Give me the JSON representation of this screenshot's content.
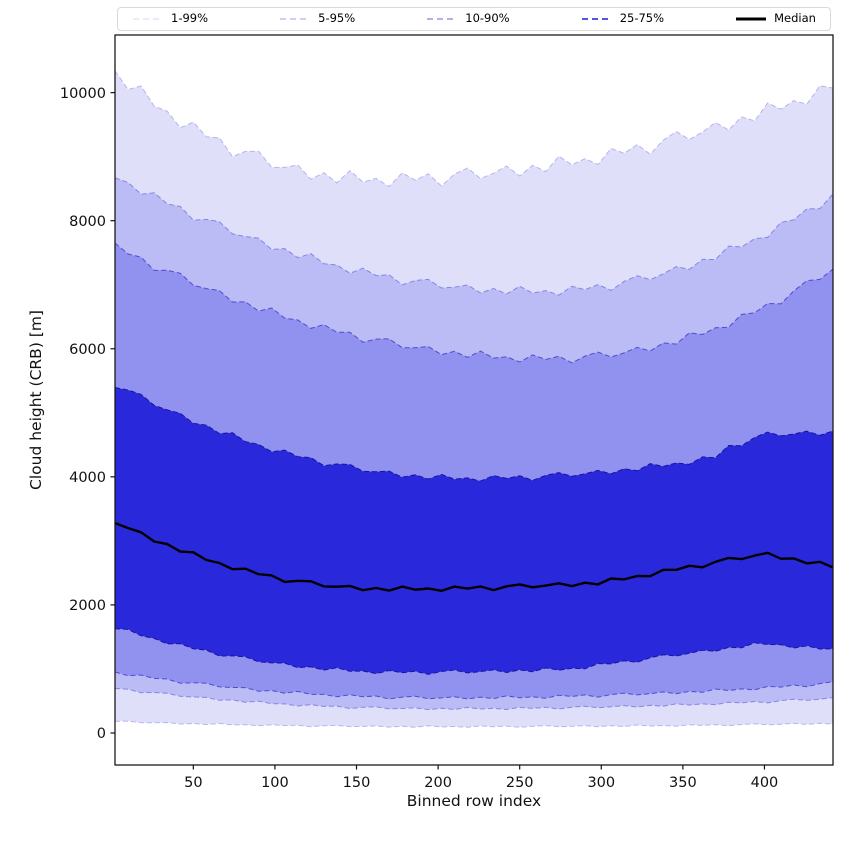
{
  "legend": {
    "items": [
      {
        "label": "1-99%",
        "color": "#e3e3f8",
        "dash": "6,4",
        "width": 1.5
      },
      {
        "label": "5-95%",
        "color": "#bdbdf3",
        "dash": "6,4",
        "width": 1.5
      },
      {
        "label": "10-90%",
        "color": "#9595ee",
        "dash": "6,4",
        "width": 1.5
      },
      {
        "label": "25-75%",
        "color": "#3b3be0",
        "dash": "6,4",
        "width": 1.8
      },
      {
        "label": "Median",
        "color": "#000000",
        "dash": "none",
        "width": 3
      }
    ]
  },
  "chart_data": {
    "type": "area",
    "xlabel": "Binned row index",
    "ylabel": "Cloud height (CRB) [m]",
    "xlim": [
      2,
      442
    ],
    "ylim": [
      -500,
      10900
    ],
    "x_ticks": [
      50,
      100,
      150,
      200,
      250,
      300,
      350,
      400
    ],
    "y_ticks": [
      0,
      2000,
      4000,
      6000,
      8000,
      10000
    ],
    "grid": false,
    "legend_position": "top",
    "x": [
      2,
      10,
      18,
      26,
      34,
      42,
      50,
      58,
      66,
      74,
      82,
      90,
      98,
      106,
      114,
      122,
      130,
      138,
      146,
      154,
      162,
      170,
      178,
      186,
      194,
      202,
      210,
      218,
      226,
      234,
      242,
      250,
      258,
      266,
      274,
      282,
      290,
      298,
      306,
      314,
      322,
      330,
      338,
      346,
      354,
      362,
      370,
      378,
      386,
      394,
      402,
      410,
      418,
      426,
      434,
      442
    ],
    "percentiles": {
      "p1": [
        183,
        185,
        161,
        161,
        164,
        141,
        150,
        132,
        149,
        127,
        129,
        113,
        130,
        115,
        121,
        98,
        113,
        119,
        99,
        103,
        111,
        92,
        105,
        91,
        112,
        95,
        101,
        88,
        110,
        98,
        108,
        88,
        106,
        115,
        98,
        105,
        115,
        98,
        114,
        102,
        125,
        109,
        117,
        106,
        129,
        119,
        131,
        113,
        133,
        143,
        128,
        137,
        149,
        134,
        151,
        141
      ],
      "p5": [
        695,
        684,
        629,
        632,
        622,
        573,
        562,
        556,
        512,
        516,
        480,
        497,
        457,
        454,
        422,
        444,
        415,
        420,
        383,
        402,
        409,
        376,
        382,
        394,
        365,
        386,
        366,
        399,
        374,
        385,
        367,
        401,
        384,
        401,
        374,
        403,
        419,
        395,
        409,
        428,
        406,
        432,
        418,
        456,
        437,
        454,
        441,
        481,
        470,
        492,
        470,
        505,
        527,
        509,
        528,
        552
      ],
      "p10": [
        952,
        894,
        906,
        853,
        843,
        777,
        786,
        778,
        719,
        710,
        708,
        653,
        664,
        622,
        649,
        602,
        602,
        565,
        598,
        566,
        577,
        531,
        561,
        574,
        536,
        548,
        566,
        531,
        561,
        537,
        581,
        550,
        565,
        543,
        590,
        570,
        594,
        560,
        600,
        623,
        594,
        614,
        641,
        614,
        651,
        635,
        687,
        664,
        688,
        674,
        728,
        717,
        749,
        723,
        771,
        802
      ],
      "p25": [
        1627,
        1618,
        1517,
        1477,
        1391,
        1394,
        1315,
        1294,
        1202,
        1206,
        1190,
        1111,
        1095,
        1091,
        1021,
        1034,
        982,
        1019,
        963,
        968,
        927,
        975,
        942,
        965,
        916,
        960,
        983,
        939,
        958,
        985,
        944,
        985,
        957,
        1017,
        981,
        1010,
        1003,
        1083,
        1079,
        1128,
        1105,
        1175,
        1221,
        1202,
        1244,
        1293,
        1275,
        1337,
        1330,
        1410,
        1382,
        1379,
        1327,
        1361,
        1311,
        1315
      ],
      "p50": [
        3279,
        3199,
        3134,
        2991,
        2950,
        2833,
        2822,
        2702,
        2655,
        2557,
        2565,
        2479,
        2461,
        2360,
        2376,
        2369,
        2289,
        2285,
        2295,
        2230,
        2264,
        2223,
        2286,
        2237,
        2256,
        2220,
        2286,
        2255,
        2287,
        2232,
        2290,
        2321,
        2275,
        2302,
        2338,
        2294,
        2347,
        2320,
        2413,
        2398,
        2452,
        2449,
        2548,
        2548,
        2611,
        2587,
        2674,
        2734,
        2716,
        2770,
        2814,
        2722,
        2726,
        2649,
        2674,
        2585
      ],
      "p75": [
        5394,
        5356,
        5287,
        5116,
        5046,
        4992,
        4834,
        4808,
        4677,
        4688,
        4549,
        4507,
        4392,
        4418,
        4315,
        4301,
        4174,
        4200,
        4193,
        4087,
        4080,
        4089,
        3995,
        4032,
        3965,
        4038,
        3963,
        3984,
        3933,
        4019,
        3975,
        4017,
        3945,
        4023,
        4067,
        4008,
        4048,
        4101,
        4048,
        4125,
        4096,
        4205,
        4163,
        4216,
        4194,
        4311,
        4297,
        4489,
        4486,
        4614,
        4698,
        4639,
        4669,
        4712,
        4649,
        4716
      ],
      "p90": [
        7650,
        7480,
        7430,
        7224,
        7225,
        7178,
        6991,
        6939,
        6908,
        6731,
        6733,
        6589,
        6637,
        6477,
        6449,
        6318,
        6378,
        6258,
        6258,
        6101,
        6151,
        6155,
        6017,
        6016,
        6035,
        5908,
        5960,
        5866,
        5963,
        5854,
        5875,
        5794,
        5904,
        5833,
        5884,
        5780,
        5886,
        5948,
        5872,
        5936,
        6022,
        5965,
        6091,
        6073,
        6250,
        6223,
        6329,
        6336,
        6537,
        6561,
        6707,
        6701,
        6904,
        7063,
        7084,
        7244
      ],
      "p95": [
        8670,
        8596,
        8412,
        8435,
        8263,
        8221,
        8009,
        8021,
        7984,
        7794,
        7751,
        7729,
        7550,
        7565,
        7422,
        7487,
        7327,
        7308,
        7179,
        7258,
        7142,
        7155,
        6998,
        7066,
        7084,
        6949,
        6962,
        6996,
        6871,
        6942,
        6855,
        6975,
        6870,
        6908,
        6837,
        6976,
        6923,
        7001,
        6912,
        7050,
        7140,
        7080,
        7170,
        7283,
        7240,
        7395,
        7394,
        7603,
        7589,
        7719,
        7741,
        7973,
        8012,
        8184,
        8187,
        8418
      ],
      "p99": [
        10340,
        10047,
        10103,
        9786,
        9709,
        9450,
        9540,
        9308,
        9294,
        8999,
        9082,
        9084,
        8834,
        8833,
        8870,
        8646,
        8749,
        8592,
        8783,
        8602,
        8660,
        8532,
        8746,
        8632,
        8731,
        8542,
        8726,
        8821,
        8659,
        8740,
        8853,
        8698,
        8865,
        8765,
        9007,
        8871,
        8968,
        8877,
        9129,
        9052,
        9189,
        9037,
        9258,
        9391,
        9266,
        9384,
        9534,
        9416,
        9621,
        9558,
        9838,
        9740,
        9874,
        9820,
        10109,
        10070
      ]
    },
    "bands": [
      {
        "label": "1-99%",
        "low": "p1",
        "high": "p99",
        "fill": "#dfdffa",
        "edge": "#b4b4f0"
      },
      {
        "label": "5-95%",
        "low": "p5",
        "high": "p95",
        "fill": "#bbbbf5",
        "edge": "#8585e6"
      },
      {
        "label": "10-90%",
        "low": "p10",
        "high": "p90",
        "fill": "#9191ef",
        "edge": "#4d4dcf"
      },
      {
        "label": "25-75%",
        "low": "p25",
        "high": "p75",
        "fill": "#2929db",
        "edge": "#15159d"
      }
    ],
    "median": {
      "label": "Median",
      "key": "p50",
      "color": "#000000",
      "width": 2.4
    }
  },
  "axes": {
    "spine_color": "#1a1a1a",
    "tick_color": "#111111"
  }
}
